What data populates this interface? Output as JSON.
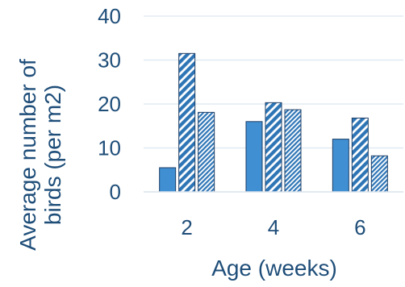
{
  "chart_data": {
    "type": "bar",
    "xlabel": "Age (weeks)",
    "ylabel_lines": [
      "Average number of",
      "birds (per m2)"
    ],
    "categories": [
      "2",
      "4",
      "6"
    ],
    "ylim": [
      0,
      40
    ],
    "yticks": [
      0,
      10,
      20,
      30,
      40
    ],
    "grid": true,
    "series": [
      {
        "fill": "solid",
        "color": "#3f8fd2",
        "values": [
          5.5,
          16,
          12
        ]
      },
      {
        "fill": "hatch-dense",
        "color": "#2e75b6",
        "values": [
          31.5,
          20.3,
          16.8
        ]
      },
      {
        "fill": "hatch-fine",
        "color": "#2e75b6",
        "values": [
          18.1,
          18.7,
          8.2
        ]
      }
    ]
  }
}
